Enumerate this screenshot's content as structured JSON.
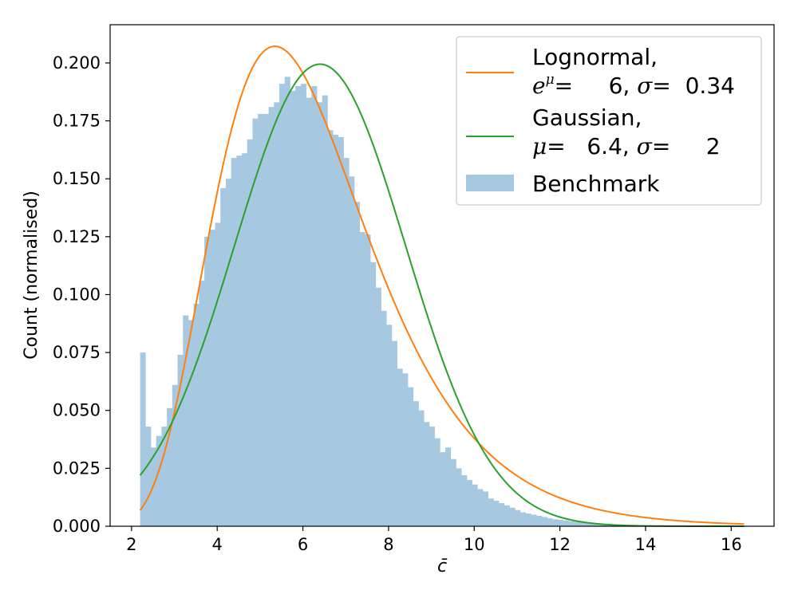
{
  "chart_data": {
    "type": "histogram",
    "xlabel": "c̄",
    "ylabel": "Count (normalised)",
    "xlim": [
      1.5,
      17.0
    ],
    "ylim": [
      0.0,
      0.2165
    ],
    "xticks": [
      2,
      4,
      6,
      8,
      10,
      12,
      14,
      16
    ],
    "yticks": [
      0.0,
      0.025,
      0.05,
      0.075,
      0.1,
      0.125,
      0.15,
      0.175,
      0.2
    ],
    "ytick_labels": [
      "0.000",
      "0.025",
      "0.050",
      "0.075",
      "0.100",
      "0.125",
      "0.150",
      "0.175",
      "0.200"
    ],
    "grid": false,
    "legend_position": "top-right",
    "legend": {
      "lognormal_line1": "Lognormal,",
      "lognormal_line2": {
        "e": "e",
        "sup": "μ",
        "eq": "=     6, ",
        "sigma": "σ",
        "sigma_val": "=  0.34"
      },
      "gaussian_line1": "Gaussian,",
      "gaussian_line2": {
        "mu": "μ",
        "eq": "=   6.4, ",
        "sigma": "σ",
        "sigma_val": "=     2"
      },
      "benchmark": "Benchmark"
    },
    "series": [
      {
        "name": "Lognormal",
        "kind": "line",
        "color": "#ff7f0e",
        "x_range": [
          2.2,
          16.3
        ],
        "median": 6.0,
        "sigma": 0.34
      },
      {
        "name": "Gaussian",
        "kind": "line",
        "color": "#2ca02c",
        "x_range": [
          2.2,
          16.3
        ],
        "mu": 6.4,
        "sigma": 2.0
      },
      {
        "name": "Benchmark",
        "kind": "histogram",
        "color": "#a6c8e0",
        "bin_start": 2.2,
        "bin_width": 0.125,
        "values": [
          0.075,
          0.043,
          0.034,
          0.039,
          0.043,
          0.051,
          0.061,
          0.074,
          0.091,
          0.089,
          0.096,
          0.106,
          0.125,
          0.128,
          0.131,
          0.146,
          0.15,
          0.159,
          0.16,
          0.161,
          0.167,
          0.176,
          0.178,
          0.178,
          0.181,
          0.183,
          0.191,
          0.194,
          0.188,
          0.19,
          0.191,
          0.185,
          0.19,
          0.183,
          0.186,
          0.171,
          0.169,
          0.168,
          0.159,
          0.151,
          0.14,
          0.127,
          0.126,
          0.114,
          0.103,
          0.093,
          0.087,
          0.08,
          0.068,
          0.066,
          0.06,
          0.054,
          0.05,
          0.045,
          0.043,
          0.038,
          0.032,
          0.034,
          0.029,
          0.025,
          0.022,
          0.02,
          0.018,
          0.016,
          0.015,
          0.012,
          0.011,
          0.01,
          0.009,
          0.008,
          0.007,
          0.006,
          0.0055,
          0.005,
          0.0045,
          0.004,
          0.0035,
          0.003,
          0.0028,
          0.0025,
          0.0022,
          0.002,
          0.0018,
          0.0016,
          0.0014,
          0.0012,
          0.001,
          0.001,
          0.0008,
          0.0007,
          0.0006,
          0.0005,
          0.0004,
          0.0004,
          0.0003,
          0.0003,
          0.0002,
          0.0002,
          0.0002,
          0.0001,
          0.0001,
          0.0001,
          0.0001,
          0.0001,
          0.0001,
          0.0001,
          0.0001
        ]
      }
    ]
  }
}
